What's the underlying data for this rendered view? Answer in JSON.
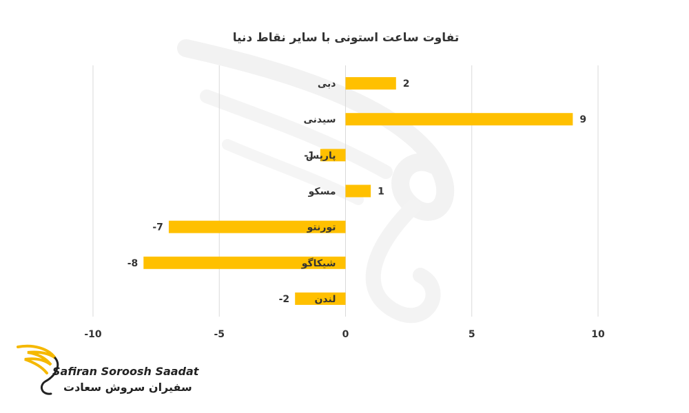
{
  "chart_data": {
    "type": "bar",
    "orientation": "horizontal",
    "title": "تفاوت ساعت استونی با سایر نقاط دنیا",
    "categories": [
      "دبی",
      "سیدنی",
      "پاریس",
      "مسکو",
      "تورنتو",
      "شیکاگو",
      "لندن"
    ],
    "values": [
      2,
      9,
      -1,
      1,
      -7,
      -8,
      -2
    ],
    "data_labels": [
      "2",
      "9",
      "-1",
      "1",
      "-7",
      "-8",
      "-2"
    ],
    "xlim": [
      -10,
      10
    ],
    "xticks": [
      -10,
      -5,
      0,
      5,
      10
    ],
    "xtick_labels": [
      "-10",
      "-5",
      "0",
      "5",
      "10"
    ],
    "grid": "vertical",
    "bar_color": "#FFC000"
  },
  "logo": {
    "name_en": "Safiran Soroosh Saadat",
    "name_fa": "سفیران سروش سعادت",
    "accent_color": "#F5B800"
  }
}
